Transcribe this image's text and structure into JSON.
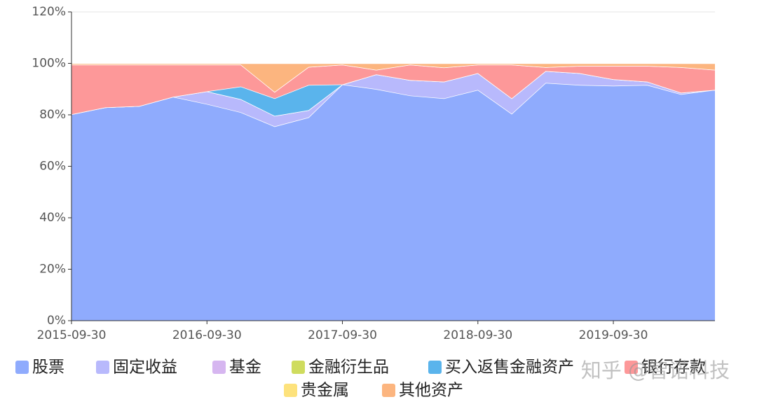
{
  "chart_data": {
    "type": "stacked_area",
    "categories": [
      "2015-09-30",
      null,
      null,
      null,
      "2016-09-30",
      null,
      null,
      null,
      "2017-09-30",
      null,
      null,
      null,
      "2018-09-30",
      null,
      null,
      null,
      "2019-09-30",
      null,
      null,
      null
    ],
    "series": [
      {
        "name": "股票",
        "color": "#8fabfd",
        "values": [
          80.2,
          82.9,
          83.4,
          87,
          84.2,
          81,
          75.5,
          79,
          91.8,
          90,
          87.5,
          86.4,
          89.7,
          80.4,
          92.4,
          91.6,
          91.3,
          91.6,
          88,
          89.7
        ]
      },
      {
        "name": "固定收益",
        "color": "#b8b9fc",
        "values": [
          0,
          0,
          0,
          0,
          4.9,
          5.1,
          4.1,
          2.8,
          0,
          5.7,
          6,
          6.5,
          6.5,
          6,
          4.6,
          4.6,
          2.5,
          1.3,
          0.6,
          0
        ]
      },
      {
        "name": "基金",
        "color": "#d6b6f0",
        "values": [
          0,
          0,
          0,
          0,
          0,
          0,
          0,
          0,
          0,
          0,
          0,
          0,
          0,
          0,
          0,
          0,
          0,
          0,
          0,
          0
        ]
      },
      {
        "name": "金融衍生品",
        "color": "#cfdc5e",
        "values": [
          0,
          0,
          0,
          0,
          0,
          0,
          0,
          0,
          0,
          0,
          0,
          0,
          0,
          0,
          0,
          0,
          0,
          0,
          0,
          0
        ]
      },
      {
        "name": "买入返售金融资产",
        "color": "#5ab4ec",
        "values": [
          0,
          0,
          0,
          0,
          0,
          4.9,
          6.8,
          9.8,
          0,
          0,
          0,
          0,
          0,
          0,
          0,
          0,
          0,
          0,
          0,
          0
        ]
      },
      {
        "name": "银行存款",
        "color": "#fd9899",
        "values": [
          19.3,
          16.6,
          16.1,
          12.5,
          10.4,
          8.5,
          2.5,
          7,
          7.7,
          1.8,
          6,
          5.5,
          3.3,
          13.1,
          1.5,
          2.8,
          5.2,
          6.1,
          9.9,
          7.8
        ]
      },
      {
        "name": "贵金属",
        "color": "#fde27c",
        "values": [
          0,
          0,
          0,
          0,
          0,
          0,
          0,
          0,
          0,
          0,
          0,
          0,
          0,
          0,
          0,
          0,
          0,
          0,
          0,
          0
        ]
      },
      {
        "name": "其他资产",
        "color": "#fcb57f",
        "values": [
          0.5,
          0.5,
          0.5,
          0.5,
          0.5,
          0.5,
          11.1,
          1.4,
          0.5,
          2.5,
          0.5,
          1.6,
          0.5,
          0.5,
          1.5,
          1,
          1,
          1,
          1.5,
          2.5
        ]
      }
    ],
    "ylim": [
      0,
      120
    ],
    "yticks": [
      {
        "value": 0,
        "label": "0%"
      },
      {
        "value": 20,
        "label": "20%"
      },
      {
        "value": 40,
        "label": "40%"
      },
      {
        "value": 60,
        "label": "60%"
      },
      {
        "value": 80,
        "label": "80%"
      },
      {
        "value": 100,
        "label": "100%"
      },
      {
        "value": 120,
        "label": "120%"
      }
    ],
    "grid": true,
    "watermark": "知乎 @智诺科技"
  }
}
